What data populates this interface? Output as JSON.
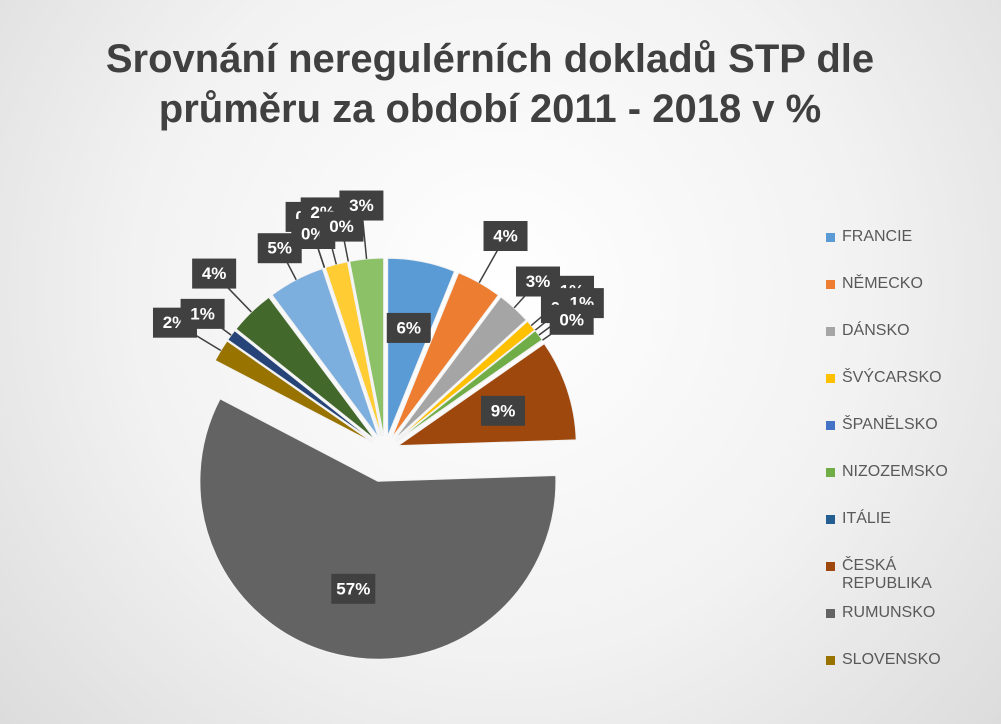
{
  "chart_data": {
    "type": "pie",
    "title": "Srovnání neregulérních dokladů STP dle průměru za období 2011 - 2018 v %",
    "categories": [
      "FRANCIE",
      "NĚMECKO",
      "DÁNSKO",
      "ŠVÝCARSKO",
      "ŠPANĚLSKO",
      "NIZOZEMSKO",
      "ITÁLIE",
      "ČESKÁ REPUBLIKA",
      "RUMUNSKO",
      "SLOVENSKO",
      null,
      null,
      null,
      null,
      null,
      null,
      null,
      null
    ],
    "values": [
      6,
      4,
      3,
      1,
      0,
      1,
      0,
      9,
      57,
      2,
      1,
      4,
      5,
      0,
      0,
      2,
      0,
      3
    ],
    "colors": [
      "#5b9bd5",
      "#ed7d31",
      "#a5a5a5",
      "#ffc000",
      "#4472c4",
      "#70ad47",
      "#255e91",
      "#9e480e",
      "#636363",
      "#997300",
      "#264478",
      "#43682b",
      "#7cafdd",
      "#f1975a",
      "#b7b7b7",
      "#ffcd33",
      "#698ed0",
      "#8cc168"
    ],
    "legend": "right"
  }
}
